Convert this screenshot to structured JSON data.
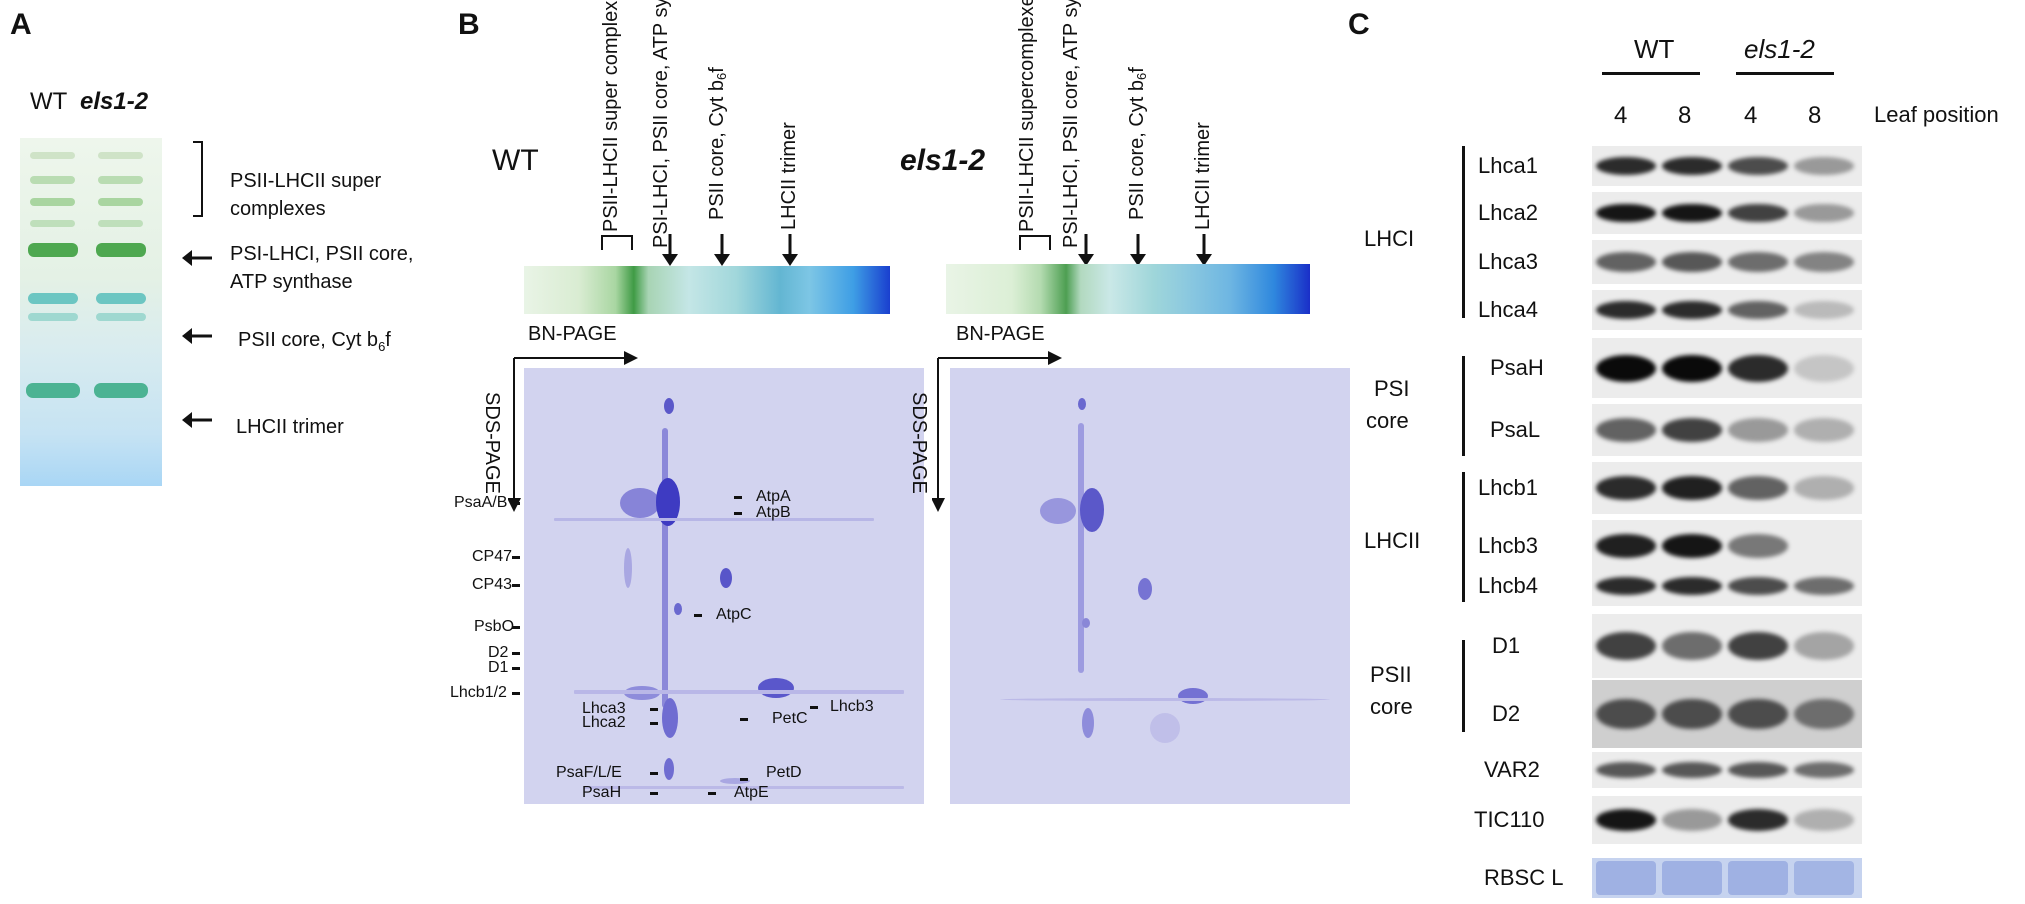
{
  "panel_a": {
    "letter": "A",
    "lane_wt": "WT",
    "lane_mut": "els1-2",
    "bands": [
      {
        "label": "PSII-LHCII super complexes"
      },
      {
        "label": "PSI-LHCI, PSII core, ATP synthase"
      },
      {
        "label": "PSII  core, Cyt b6f"
      },
      {
        "label": "LHCII trimer"
      }
    ],
    "label_super_line1": "PSII-LHCII super",
    "label_super_line2": "complexes",
    "label_psi_line1": "PSI-LHCI, PSII core,",
    "label_psi_line2": "ATP synthase",
    "label_psii_main": "PSII  core, Cyt b",
    "label_psii_sub": "6",
    "label_psii_end": "f",
    "label_lhcii": "LHCII trimer"
  },
  "panel_b": {
    "letter": "B",
    "wt_title": "WT",
    "mut_title": "els1-2",
    "wt_header_labels": {
      "col1": "PSII-LHCII super complexe",
      "col2": "PSI-LHCI, PSII core, ATP synthase",
      "col3_main": "PSII  core, Cyt b",
      "col3_sub": "6",
      "col3_end": "f",
      "col4": "LHCII trimer"
    },
    "mut_header_labels": {
      "col1": "PSII-LHCII supercomplexe",
      "col2": "PSI-LHCI, PSII core, ATP synthase",
      "col3_main": "PSII  core, Cyt b",
      "col3_sub": "6",
      "col3_end": "f",
      "col4": "LHCII trimer"
    },
    "bn_page": "BN-PAGE",
    "sds_page": "SDS-PAGE",
    "left_proteins": [
      "PsaA/B",
      "CP47",
      "CP43",
      "PsbO",
      "D2",
      "D1",
      "Lhcb1/2",
      "Lhca3",
      "Lhca2",
      "PsaF/L/E",
      "PsaH"
    ],
    "right_proteins": [
      "AtpA",
      "AtpB",
      "AtpC",
      "PetC",
      "Lhcb3",
      "PetD",
      "AtpE"
    ]
  },
  "panel_c": {
    "letter": "C",
    "group_wt": "WT",
    "group_mut": "els1-2",
    "lane_numbers": [
      "4",
      "8",
      "4",
      "8"
    ],
    "leaf_position": "Leaf position",
    "groups": {
      "lhci": "LHCI",
      "psi_core_line1": "PSI",
      "psi_core_line2": "core",
      "lhcii": "LHCII",
      "psii_core_line1": "PSII",
      "psii_core_line2": "core"
    },
    "rows": [
      {
        "name": "Lhca1",
        "intensity": [
          0.85,
          0.85,
          0.7,
          0.35
        ]
      },
      {
        "name": "Lhca2",
        "intensity": [
          0.95,
          0.95,
          0.75,
          0.35
        ]
      },
      {
        "name": "Lhca3",
        "intensity": [
          0.6,
          0.65,
          0.55,
          0.45
        ]
      },
      {
        "name": "Lhca4",
        "intensity": [
          0.85,
          0.85,
          0.6,
          0.2
        ]
      },
      {
        "name": "PsaH",
        "intensity": [
          1.0,
          1.0,
          0.85,
          0.15
        ]
      },
      {
        "name": "PsaL",
        "intensity": [
          0.6,
          0.75,
          0.35,
          0.25
        ]
      },
      {
        "name": "Lhcb1",
        "intensity": [
          0.85,
          0.9,
          0.6,
          0.25
        ]
      },
      {
        "name": "Lhcb3",
        "intensity": [
          0.9,
          0.95,
          0.5,
          0.0
        ]
      },
      {
        "name": "Lhcb4",
        "intensity": [
          0.85,
          0.85,
          0.7,
          0.55
        ]
      },
      {
        "name": "D1",
        "intensity": [
          0.75,
          0.55,
          0.75,
          0.3
        ]
      },
      {
        "name": "D2",
        "intensity": [
          0.7,
          0.7,
          0.7,
          0.55
        ]
      },
      {
        "name": "VAR2",
        "intensity": [
          0.65,
          0.65,
          0.65,
          0.55
        ]
      },
      {
        "name": "TIC110",
        "intensity": [
          0.95,
          0.35,
          0.85,
          0.25
        ]
      },
      {
        "name": "RBSC L",
        "intensity": [
          0.5,
          0.5,
          0.5,
          0.45
        ]
      }
    ]
  }
}
